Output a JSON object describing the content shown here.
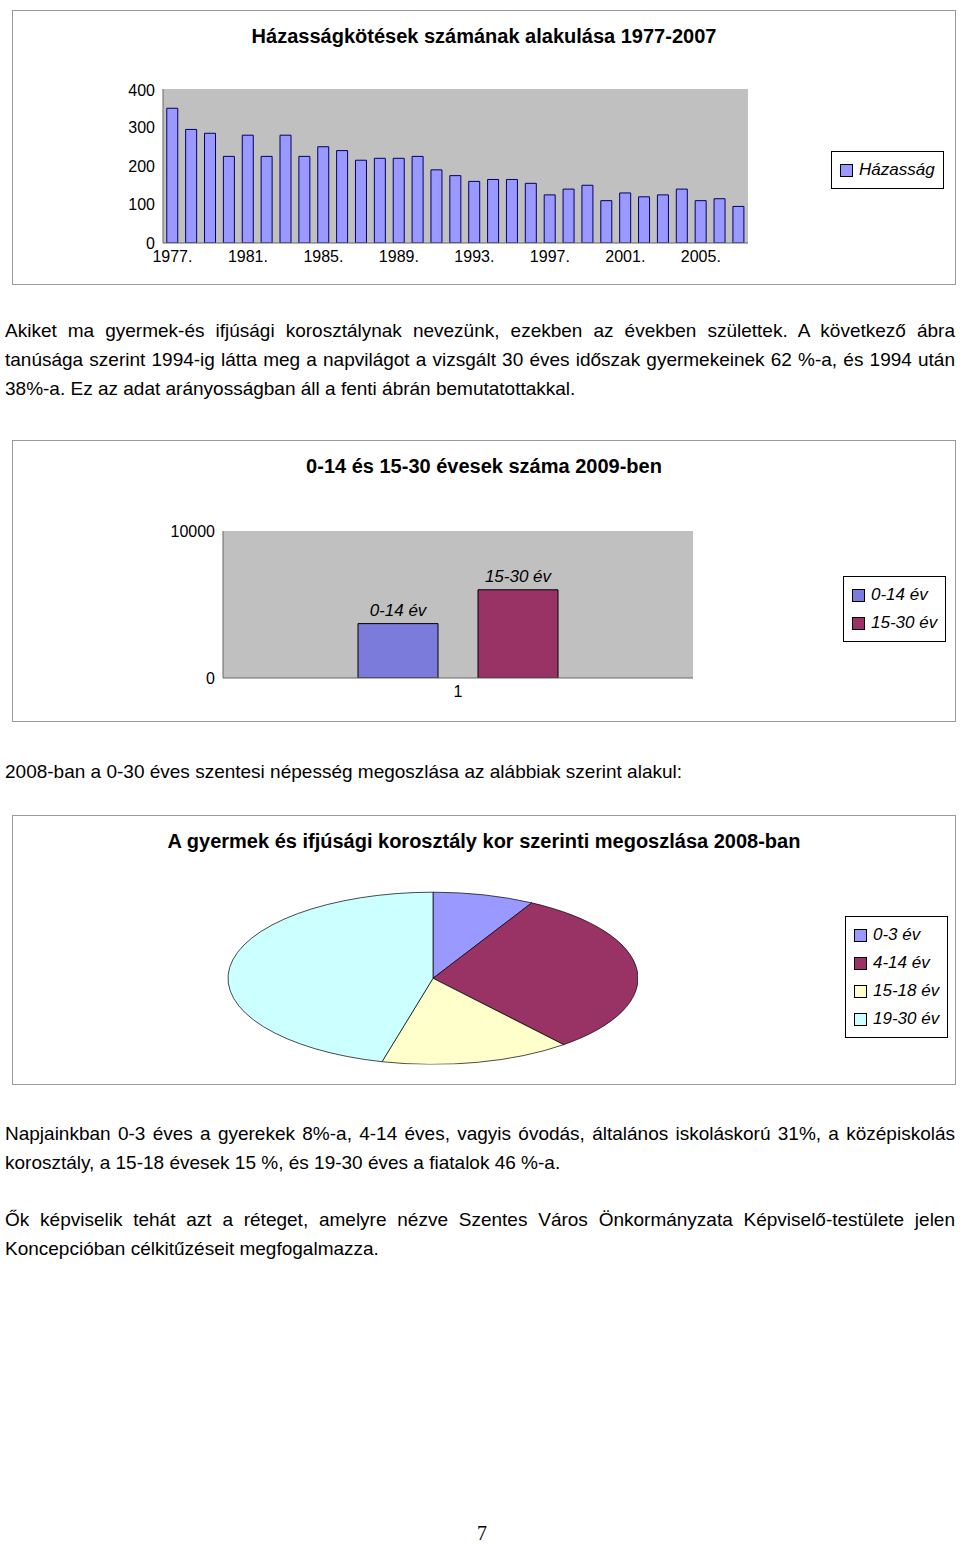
{
  "document": {
    "paragraphs": [
      "Akiket ma gyermek-és ifjúsági korosztálynak nevezünk, ezekben az években születtek. A következő ábra tanúsága szerint 1994-ig látta meg a napvilágot a vizsgált 30 éves időszak gyermekeinek 62 %-a, és 1994 után 38%-a. Ez az adat arányosságban áll a fenti ábrán bemutatottakkal.",
      "2008-ban a 0-30 éves szentesi népesség megoszlása az alábbiak szerint alakul:",
      "Napjainkban 0-3 éves a gyerekek 8%-a, 4-14 éves, vagyis óvodás, általános iskoláskorú 31%, a középiskolás korosztály, a 15-18 évesek 15 %, és 19-30 éves a fiatalok 46 %-a.",
      "Ők képviselik tehát azt a réteget, amelyre nézve Szentes Város Önkormányzata Képviselő-testülete jelen Koncepcióban célkitűzéseit megfogalmazza."
    ],
    "page_number": "7"
  },
  "chart_data": [
    {
      "type": "bar",
      "title": "Házasságkötések számának alakulása 1977-2007",
      "categories": [
        "1977.",
        null,
        null,
        null,
        "1981.",
        null,
        null,
        null,
        "1985.",
        null,
        null,
        null,
        "1989.",
        null,
        null,
        null,
        "1993.",
        null,
        null,
        null,
        "1997.",
        null,
        null,
        null,
        "2001.",
        null,
        null,
        null,
        "2005.",
        null,
        null
      ],
      "series": [
        {
          "name": "Házasság",
          "color": "#9999ff",
          "values": [
            350,
            295,
            285,
            225,
            280,
            225,
            280,
            225,
            250,
            240,
            215,
            220,
            220,
            225,
            190,
            175,
            160,
            165,
            165,
            155,
            125,
            140,
            150,
            110,
            130,
            120,
            125,
            140,
            110,
            115,
            95
          ]
        }
      ],
      "ylim": [
        0,
        400
      ],
      "yticks": [
        0,
        100,
        200,
        300,
        400
      ],
      "legend": "right"
    },
    {
      "type": "bar",
      "title": "0-14 és 15-30 évesek száma 2009-ben",
      "categories": [
        "1"
      ],
      "series": [
        {
          "name": "0-14 év",
          "color": "#7b7bdb",
          "values": [
            3700
          ]
        },
        {
          "name": "15-30 év",
          "color": "#993366",
          "values": [
            6000
          ]
        }
      ],
      "ylim": [
        0,
        10000
      ],
      "yticks": [
        0,
        10000
      ],
      "legend": "right"
    },
    {
      "type": "pie",
      "title": "A gyermek és ifjúsági korosztály kor szerinti megoszlása 2008-ban",
      "categories": [
        "0-3 év",
        "4-14 év",
        "15-18 év",
        "19-30 év"
      ],
      "values": [
        8,
        31,
        15,
        46
      ],
      "colors": [
        "#9999ff",
        "#993366",
        "#ffffcc",
        "#ccffff"
      ],
      "legend": "right"
    }
  ]
}
